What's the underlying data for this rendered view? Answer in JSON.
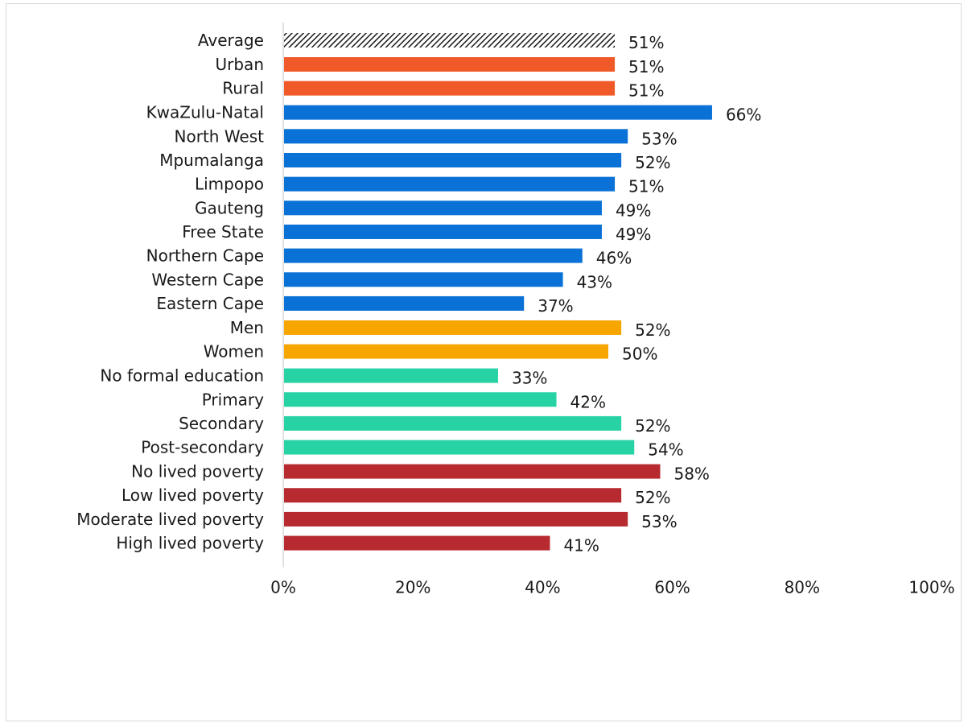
{
  "chart_data": {
    "type": "bar",
    "orientation": "horizontal",
    "title": "",
    "xlabel": "",
    "ylabel": "",
    "xlim": [
      0,
      100
    ],
    "x_ticks": [
      "0%",
      "20%",
      "40%",
      "60%",
      "80%",
      "100%"
    ],
    "value_suffix": "%",
    "grid": false,
    "colors": {
      "average": "#1a1a1a",
      "location": "#f05a28",
      "province": "#0a72d6",
      "gender": "#f7a600",
      "education": "#27d3a4",
      "poverty": "#b62a30",
      "axis": "#d9d9d9"
    },
    "groups": [
      {
        "key": "average",
        "pattern": "hatched",
        "items": [
          {
            "label": "Average",
            "value": 51
          }
        ]
      },
      {
        "key": "location",
        "items": [
          {
            "label": "Urban",
            "value": 51
          },
          {
            "label": "Rural",
            "value": 51
          }
        ]
      },
      {
        "key": "province",
        "items": [
          {
            "label": "KwaZulu-Natal",
            "value": 66
          },
          {
            "label": "North West",
            "value": 53
          },
          {
            "label": "Mpumalanga",
            "value": 52
          },
          {
            "label": "Limpopo",
            "value": 51
          },
          {
            "label": "Gauteng",
            "value": 49
          },
          {
            "label": "Free State",
            "value": 49
          },
          {
            "label": "Northern Cape",
            "value": 46
          },
          {
            "label": "Western Cape",
            "value": 43
          },
          {
            "label": "Eastern Cape",
            "value": 37
          }
        ]
      },
      {
        "key": "gender",
        "items": [
          {
            "label": "Men",
            "value": 52
          },
          {
            "label": "Women",
            "value": 50
          }
        ]
      },
      {
        "key": "education",
        "items": [
          {
            "label": "No formal education",
            "value": 33
          },
          {
            "label": "Primary",
            "value": 42
          },
          {
            "label": "Secondary",
            "value": 52
          },
          {
            "label": "Post-secondary",
            "value": 54
          }
        ]
      },
      {
        "key": "poverty",
        "items": [
          {
            "label": "No lived poverty",
            "value": 58
          },
          {
            "label": "Low lived poverty",
            "value": 52
          },
          {
            "label": "Moderate lived poverty",
            "value": 53
          },
          {
            "label": "High lived poverty",
            "value": 41
          }
        ]
      }
    ]
  }
}
